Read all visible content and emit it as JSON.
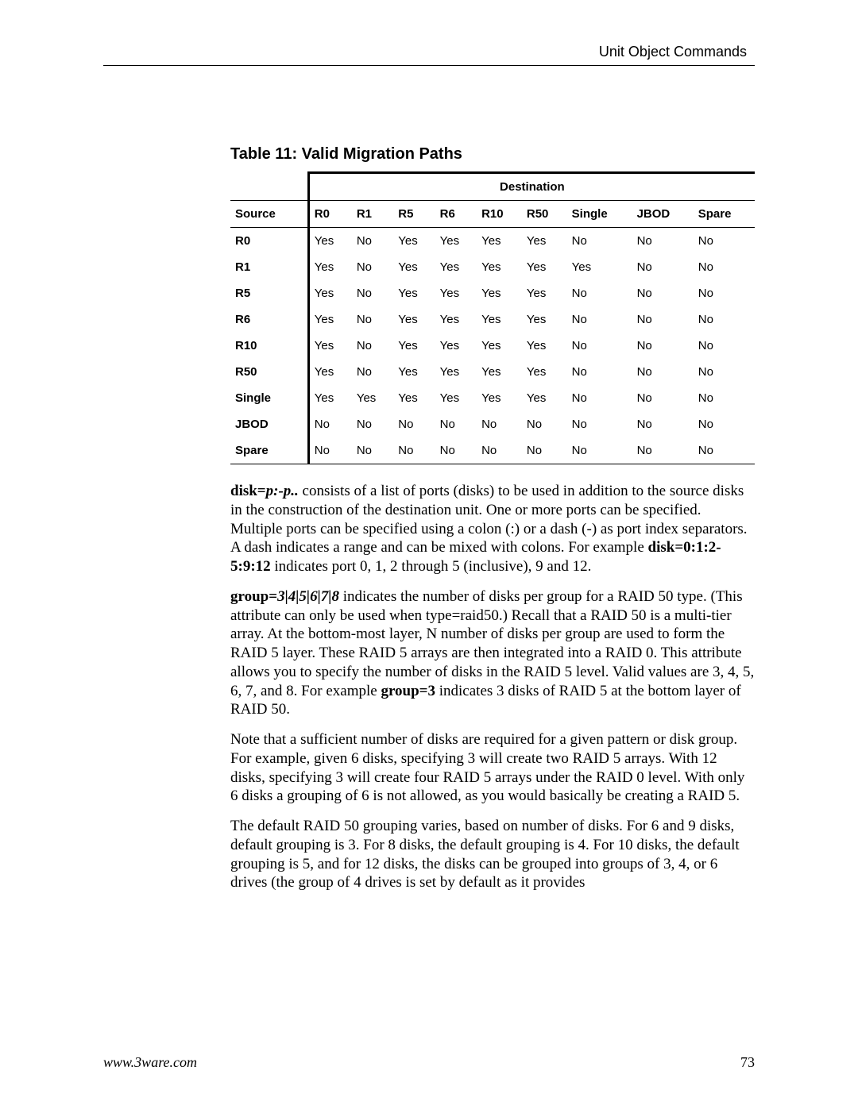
{
  "header": {
    "section_title": "Unit Object Commands"
  },
  "table": {
    "title": "Table 11: Valid Migration Paths",
    "destination_label": "Destination",
    "source_label": "Source",
    "columns": [
      "R0",
      "R1",
      "R5",
      "R6",
      "R10",
      "R50",
      "Single",
      "JBOD",
      "Spare"
    ],
    "rows": [
      {
        "label": "R0",
        "cells": [
          "Yes",
          "No",
          "Yes",
          "Yes",
          "Yes",
          "Yes",
          "No",
          "No",
          "No"
        ]
      },
      {
        "label": "R1",
        "cells": [
          "Yes",
          "No",
          "Yes",
          "Yes",
          "Yes",
          "Yes",
          "Yes",
          "No",
          "No"
        ]
      },
      {
        "label": "R5",
        "cells": [
          "Yes",
          "No",
          "Yes",
          "Yes",
          "Yes",
          "Yes",
          "No",
          "No",
          "No"
        ]
      },
      {
        "label": "R6",
        "cells": [
          "Yes",
          "No",
          "Yes",
          "Yes",
          "Yes",
          "Yes",
          "No",
          "No",
          "No"
        ]
      },
      {
        "label": "R10",
        "cells": [
          "Yes",
          "No",
          "Yes",
          "Yes",
          "Yes",
          "Yes",
          "No",
          "No",
          "No"
        ]
      },
      {
        "label": "R50",
        "cells": [
          "Yes",
          "No",
          "Yes",
          "Yes",
          "Yes",
          "Yes",
          "No",
          "No",
          "No"
        ]
      },
      {
        "label": "Single",
        "cells": [
          "Yes",
          "Yes",
          "Yes",
          "Yes",
          "Yes",
          "Yes",
          "No",
          "No",
          "No"
        ]
      },
      {
        "label": "JBOD",
        "cells": [
          "No",
          "No",
          "No",
          "No",
          "No",
          "No",
          "No",
          "No",
          "No"
        ]
      },
      {
        "label": "Spare",
        "cells": [
          "No",
          "No",
          "No",
          "No",
          "No",
          "No",
          "No",
          "No",
          "No"
        ]
      }
    ]
  },
  "paragraphs": {
    "p1_bold": "disk=",
    "p1_italic": "p:-p..",
    "p1_rest1": " consists of a list of ports (disks) to be used in addition to the source disks in the construction of the destination unit. One or more ports can be specified. Multiple ports can be specified using a colon (:) or a dash (-) as port index separators. A dash indicates a range and can be mixed with colons. For example ",
    "p1_bold2": "disk=0:1:2-5:9:12",
    "p1_rest2": " indicates port 0, 1, 2 through 5 (inclusive), 9 and 12.",
    "p2_bold": "group=",
    "p2_italic": "3|4|5|6|7|8",
    "p2_rest1": " indicates the number of disks per group for a RAID 50 type. (This attribute can only be used when type=raid50.) Recall that a RAID 50 is a multi-tier array. At the bottom-most layer, N number of disks per group are used to form the RAID 5 layer. These RAID 5 arrays are then integrated into a RAID 0. This attribute allows you to specify the number of disks in the RAID 5 level. Valid values are 3, 4, 5, 6, 7, and 8. For example ",
    "p2_bold2": "group=3",
    "p2_rest2": " indicates 3 disks of RAID 5 at the bottom layer of RAID 50.",
    "p3": "Note that a sufficient number of disks are required for a given pattern or disk group. For example, given 6 disks, specifying 3 will create two RAID 5 arrays. With 12 disks, specifying 3 will create four RAID 5 arrays under the RAID 0 level. With only 6 disks a grouping of 6 is not allowed, as you would basically be creating a RAID 5.",
    "p4": "The default RAID 50 grouping varies, based on number of disks. For 6 and 9 disks, default grouping is 3. For 8 disks, the default grouping is 4. For 10 disks, the default grouping is 5, and for 12 disks, the disks can be grouped into groups of 3, 4, or 6 drives (the group of 4 drives is set by default as it provides"
  },
  "footer": {
    "url": "www.3ware.com",
    "page": "73"
  }
}
